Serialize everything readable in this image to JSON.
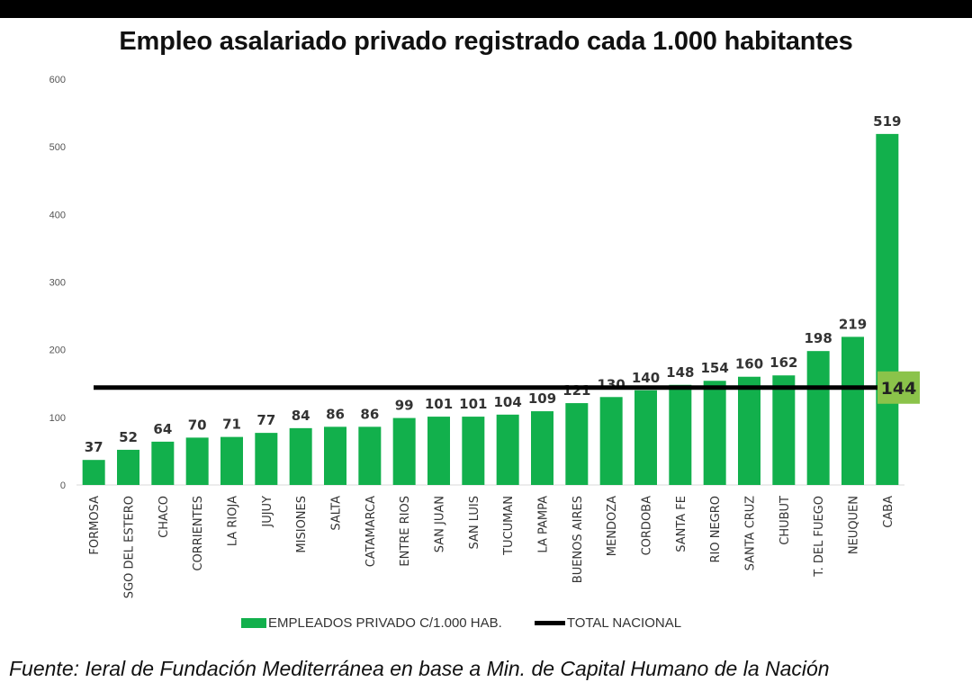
{
  "colors": {
    "bar": "#12B04C",
    "line": "#000000",
    "badge": "#8BC34A"
  },
  "chart_data": {
    "type": "bar",
    "title": "Empleo asalariado privado registrado cada 1.000 habitantes",
    "categories": [
      "FORMOSA",
      "SGO DEL ESTERO",
      "CHACO",
      "CORRIENTES",
      "LA RIOJA",
      "JUJUY",
      "MISIONES",
      "SALTA",
      "CATAMARCA",
      "ENTRE RIOS",
      "SAN JUAN",
      "SAN LUIS",
      "TUCUMAN",
      "LA PAMPA",
      "BUENOS AIRES",
      "MENDOZA",
      "CORDOBA",
      "SANTA FE",
      "RIO NEGRO",
      "SANTA CRUZ",
      "CHUBUT",
      "T. DEL FUEGO",
      "NEUQUEN",
      "CABA"
    ],
    "series": [
      {
        "name": "EMPLEADOS PRIVADO C/1.000 HAB.",
        "values": [
          37,
          52,
          64,
          70,
          71,
          77,
          84,
          86,
          86,
          99,
          101,
          101,
          104,
          109,
          121,
          130,
          140,
          148,
          154,
          160,
          162,
          198,
          219,
          519
        ]
      }
    ],
    "reference_line": {
      "name": "TOTAL NACIONAL",
      "value": 144,
      "label": "144"
    },
    "yticks": [
      0,
      100,
      200,
      300,
      400,
      500,
      600
    ],
    "ylim": [
      0,
      600
    ],
    "xlabel": "",
    "ylabel": "",
    "legend_position": "bottom",
    "grid": false
  },
  "legend": {
    "bars_label": "EMPLEADOS PRIVADO C/1.000 HAB.",
    "line_label": "TOTAL NACIONAL"
  },
  "source": "Fuente: Ieral de Fundación Mediterránea en base a Min. de Capital Humano de la Nación"
}
